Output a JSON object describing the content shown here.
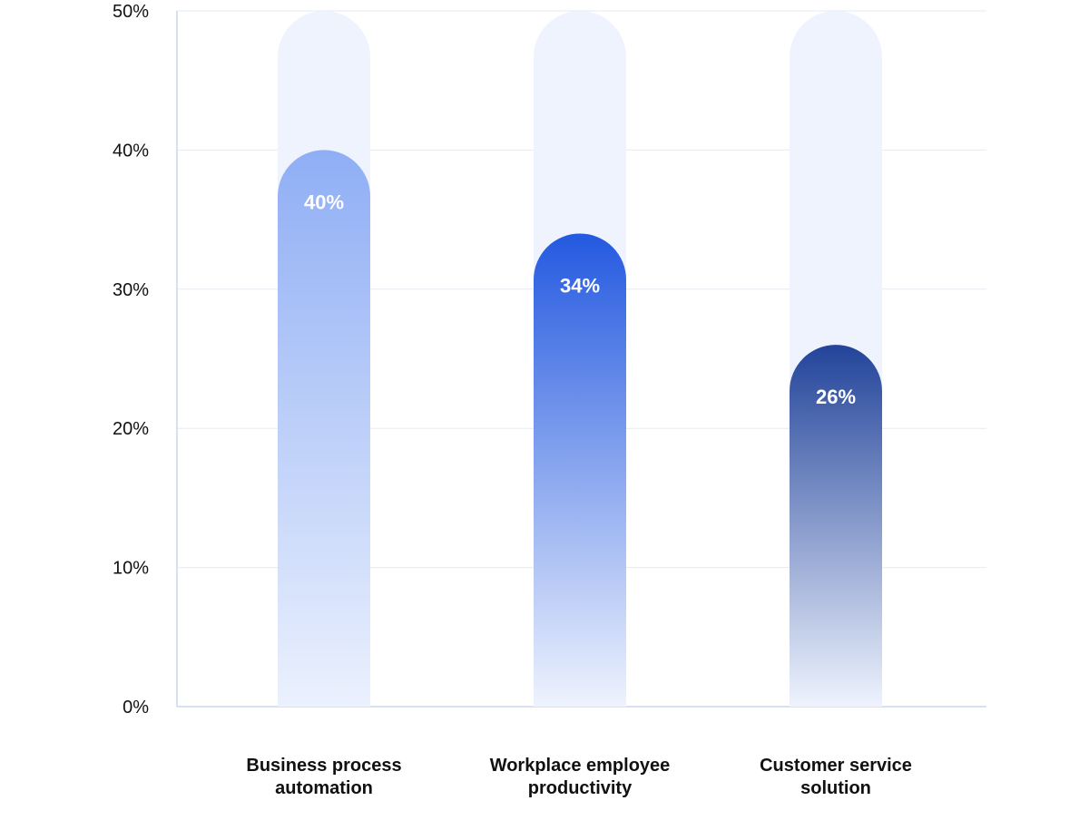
{
  "chart_data": {
    "type": "bar",
    "title": "",
    "xlabel": "",
    "ylabel": "",
    "ylim": [
      0,
      50
    ],
    "y_ticks": [
      {
        "value": 0,
        "label": "0%"
      },
      {
        "value": 10,
        "label": "10%"
      },
      {
        "value": 20,
        "label": "20%"
      },
      {
        "value": 30,
        "label": "30%"
      },
      {
        "value": 40,
        "label": "40%"
      },
      {
        "value": 50,
        "label": "50%"
      }
    ],
    "grid": true,
    "categories": [
      [
        "Business process",
        "automation"
      ],
      [
        "Workplace employee",
        "productivity"
      ],
      [
        "Customer service",
        "solution"
      ]
    ],
    "values": [
      40,
      34,
      26
    ],
    "value_labels": [
      "40%",
      "34%",
      "26%"
    ],
    "colors": {
      "track": "#EEF3FD",
      "grid": "#E6EBF2",
      "axis": "#C9D9EE",
      "bars": [
        {
          "top": "#8FAEF5",
          "bottom": "#EBF1FD"
        },
        {
          "top": "#2459E0",
          "bottom": "#EEF3FD"
        },
        {
          "top": "#23449A",
          "bottom": "#EEF3FD"
        }
      ]
    }
  }
}
